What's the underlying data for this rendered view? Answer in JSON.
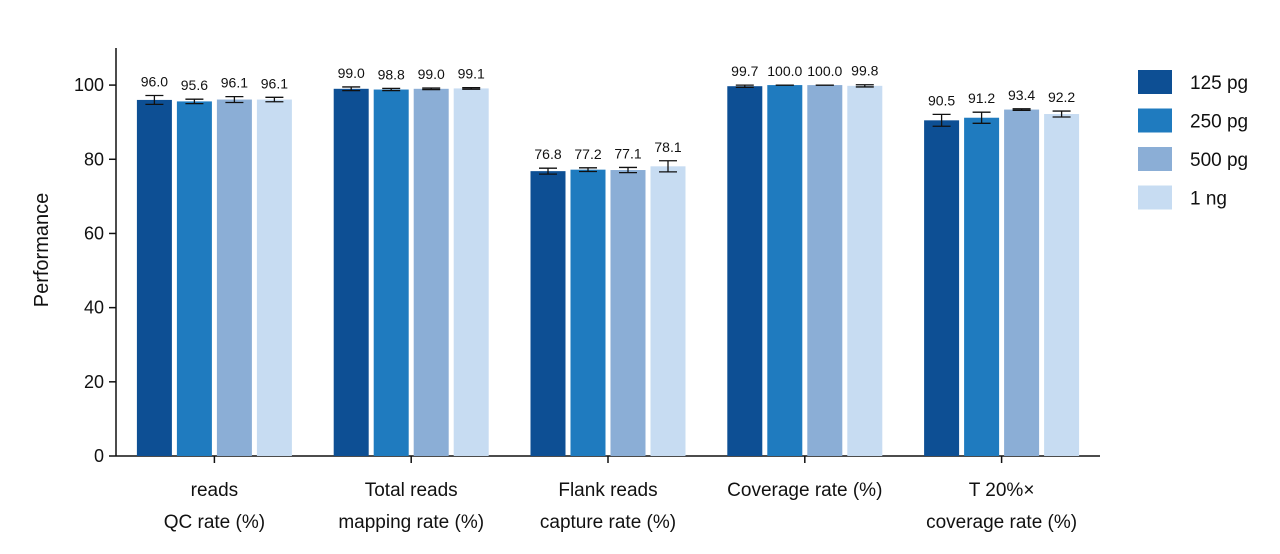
{
  "chart_data": {
    "type": "bar",
    "ylabel": "Performance",
    "xlabel": "",
    "ylim": [
      0,
      110
    ],
    "yticks": [
      0,
      20,
      40,
      60,
      80,
      100
    ],
    "grid": false,
    "legend_position": "right",
    "categories": [
      [
        "reads",
        "QC rate (%)"
      ],
      [
        "Total reads",
        "mapping rate (%)"
      ],
      [
        "Flank reads",
        "capture rate (%)"
      ],
      [
        "Coverage rate (%)"
      ],
      [
        "T 20%×",
        "coverage rate (%)"
      ]
    ],
    "series": [
      {
        "name": "125 pg",
        "color": "#0d4f94",
        "values": [
          96.0,
          99.0,
          76.8,
          99.7,
          90.5
        ],
        "labels": [
          "96.0",
          "99.0",
          "76.8",
          "99.7",
          "90.5"
        ],
        "errors": [
          1.2,
          0.5,
          0.8,
          0.3,
          1.6
        ]
      },
      {
        "name": "250 pg",
        "color": "#1f7bbf",
        "values": [
          95.6,
          98.8,
          77.2,
          100.0,
          91.2
        ],
        "labels": [
          "95.6",
          "98.8",
          "77.2",
          "100.0",
          "91.2"
        ],
        "errors": [
          0.6,
          0.3,
          0.5,
          0.0,
          1.5
        ]
      },
      {
        "name": "500 pg",
        "color": "#8baed6",
        "values": [
          96.1,
          99.0,
          77.1,
          100.0,
          93.4
        ],
        "labels": [
          "96.1",
          "99.0",
          "77.1",
          "100.0",
          "93.4"
        ],
        "errors": [
          0.8,
          0.2,
          0.7,
          0.0,
          0.2
        ]
      },
      {
        "name": "1 ng",
        "color": "#c7dcf2",
        "values": [
          96.1,
          99.1,
          78.1,
          99.8,
          92.2
        ],
        "labels": [
          "96.1",
          "99.1",
          "78.1",
          "99.8",
          "92.2"
        ],
        "errors": [
          0.6,
          0.2,
          1.5,
          0.3,
          0.8
        ]
      }
    ]
  }
}
